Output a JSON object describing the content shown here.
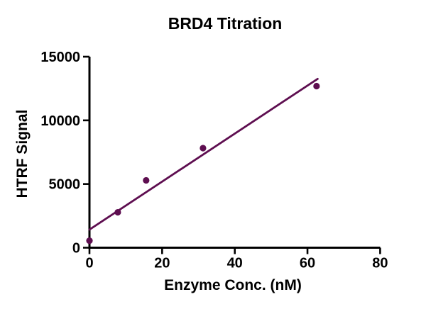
{
  "chart_data": {
    "type": "scatter",
    "title": "BRD4 Titration",
    "xlabel": "Enzyme Conc. (nM)",
    "ylabel": "HTRF Signal",
    "xlim": [
      0,
      80
    ],
    "ylim": [
      0,
      15000
    ],
    "xticks": [
      0,
      20,
      40,
      60,
      80
    ],
    "yticks": [
      0,
      5000,
      10000,
      15000
    ],
    "grid": false,
    "legend": "none",
    "frame": "left-bottom-axes-only",
    "axis_color": "#000000",
    "point_color": "#5E0E50",
    "line_color": "#5E0E50",
    "series": [
      {
        "name": "BRD4 titration",
        "points": [
          [
            0,
            550
          ],
          [
            7.8,
            2780
          ],
          [
            15.6,
            5290
          ],
          [
            31.25,
            7820
          ],
          [
            62.5,
            12690
          ]
        ]
      }
    ],
    "fit_line": {
      "type": "linear-regression",
      "slope": 188.5,
      "intercept": 1420,
      "x_start": 0,
      "x_end": 62.8
    }
  }
}
